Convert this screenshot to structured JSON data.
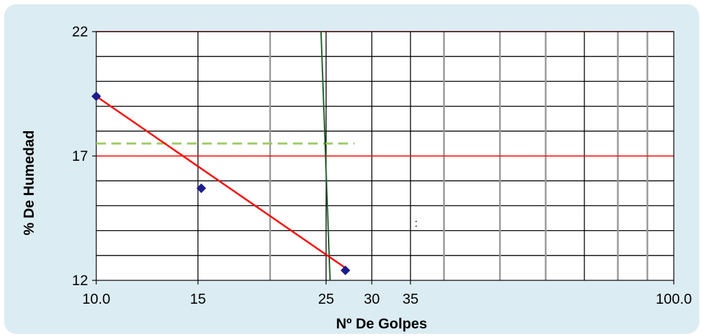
{
  "chart_data": {
    "type": "scatter",
    "xlabel": "Nº De Golpes",
    "ylabel": "% De Humedad",
    "x_scale": "log",
    "xlim": [
      10,
      100
    ],
    "ylim": [
      12,
      22
    ],
    "x_tick_labels": [
      {
        "value": 10,
        "label": "10.0"
      },
      {
        "value": 15,
        "label": "15"
      },
      {
        "value": 25,
        "label": "25"
      },
      {
        "value": 30,
        "label": "30"
      },
      {
        "value": 35,
        "label": "35"
      },
      {
        "value": 100,
        "label": "100.0"
      }
    ],
    "y_tick_labels": [
      {
        "value": 12,
        "label": "12"
      },
      {
        "value": 17,
        "label": "17"
      },
      {
        "value": 22,
        "label": "22"
      }
    ],
    "x_gridlines": [
      15,
      20,
      25,
      30,
      35,
      40,
      50,
      60,
      70,
      80,
      90
    ],
    "x_gridline_colors": [
      "#000000",
      "#999999",
      "#000000",
      "#000000",
      "#000000",
      "#999999",
      "#999999",
      "#999999",
      "#000000",
      "#999999",
      "#999999"
    ],
    "y_minor_step": 1,
    "y_major_lines": [
      17,
      22
    ],
    "grid": true,
    "colors": {
      "marker": "#1c1c8a",
      "fit_line": "#ff0000",
      "major_grid": "#ff0000",
      "minor_grid": "#000000",
      "vertical_line": "#1f5e2a",
      "dashed_line": "#9ccc65",
      "panel": "#dcecf3"
    },
    "series": [
      {
        "marker": "diamond",
        "x": [
          10,
          15.2,
          27
        ],
        "y": [
          19.4,
          15.7,
          12.4
        ]
      }
    ],
    "fit_line": {
      "x": [
        10,
        27
      ],
      "y": [
        19.4,
        12.5
      ]
    },
    "vertical_line": {
      "x": [
        24.5,
        25.4
      ],
      "y": [
        22,
        12
      ]
    },
    "dashed_line": {
      "x": [
        10,
        28
      ],
      "y": [
        17.5,
        17.5
      ]
    }
  }
}
